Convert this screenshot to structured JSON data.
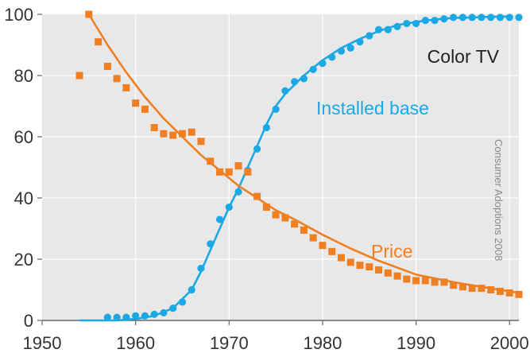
{
  "chart_data": {
    "type": "scatter",
    "title": "Color TV",
    "source_note": "Consumer Adoptions 2008",
    "xlabel": "",
    "ylabel": "",
    "xlim": [
      1950,
      2001
    ],
    "ylim": [
      0,
      100
    ],
    "x_ticks": [
      "1950",
      "1960",
      "1970",
      "1980",
      "1990",
      "2000"
    ],
    "y_ticks": [
      "0",
      "20",
      "40",
      "60",
      "80",
      "100"
    ],
    "colors": {
      "installed": "#1ba9e6",
      "price": "#f07f22",
      "plot_bg": "#e8e8e8",
      "axis": "#666666"
    },
    "series": [
      {
        "name": "Installed base",
        "color": "#1ba9e6",
        "marker": "circle",
        "x": [
          1957,
          1958,
          1959,
          1960,
          1961,
          1962,
          1963,
          1964,
          1965,
          1966,
          1967,
          1968,
          1969,
          1970,
          1971,
          1972,
          1973,
          1974,
          1975,
          1976,
          1977,
          1978,
          1979,
          1980,
          1981,
          1982,
          1983,
          1984,
          1985,
          1986,
          1987,
          1988,
          1989,
          1990,
          1991,
          1992,
          1993,
          1994,
          1995,
          1996,
          1997,
          1998,
          1999,
          2000,
          2001
        ],
        "y": [
          1,
          1,
          1,
          1.5,
          1.5,
          2,
          2.5,
          4,
          6,
          10,
          17,
          25,
          33,
          37,
          42,
          49,
          56,
          63,
          69,
          75,
          78,
          79,
          82,
          84,
          86,
          88,
          89,
          91,
          93,
          95,
          95,
          96,
          97,
          97,
          98,
          98,
          98.5,
          99,
          99,
          99,
          99,
          99,
          99,
          99,
          99
        ],
        "fit_x": [
          1954,
          1956,
          1958,
          1960,
          1962,
          1964,
          1966,
          1967,
          1968,
          1969,
          1970,
          1971,
          1972,
          1973,
          1974,
          1975,
          1976,
          1978,
          1980,
          1982,
          1984,
          1986,
          1988,
          1990,
          1992,
          1994,
          1996,
          1998,
          2000
        ],
        "fit_y": [
          0,
          0,
          0,
          0.5,
          1.5,
          4,
          10,
          16,
          23,
          30,
          37,
          43,
          50,
          57,
          64,
          70,
          74,
          80,
          85,
          89,
          92,
          94.5,
          96.5,
          97.5,
          98.3,
          98.8,
          99,
          99.2,
          99.3
        ]
      },
      {
        "name": "Price",
        "color": "#f07f22",
        "marker": "square",
        "x": [
          1954,
          1955,
          1956,
          1957,
          1958,
          1959,
          1960,
          1961,
          1962,
          1963,
          1964,
          1965,
          1966,
          1967,
          1968,
          1969,
          1970,
          1971,
          1972,
          1973,
          1974,
          1975,
          1976,
          1977,
          1978,
          1979,
          1980,
          1981,
          1982,
          1983,
          1984,
          1985,
          1986,
          1987,
          1988,
          1989,
          1990,
          1991,
          1992,
          1993,
          1994,
          1995,
          1996,
          1997,
          1998,
          1999,
          2000,
          2001
        ],
        "y": [
          80,
          100,
          91,
          83,
          79,
          76,
          71,
          69,
          63,
          61,
          60.5,
          61,
          61.5,
          58.5,
          52,
          48.5,
          48.5,
          50.5,
          48.5,
          40.5,
          37,
          34.5,
          33.5,
          31.5,
          29.5,
          27,
          24.5,
          22.5,
          20.5,
          19,
          18,
          17.5,
          16.5,
          15.5,
          14.5,
          13.5,
          13,
          13,
          12.5,
          12.5,
          11.5,
          11,
          10.5,
          10.5,
          10,
          9.5,
          9,
          8.5
        ],
        "fit_x": [
          1955,
          1957,
          1959,
          1961,
          1963,
          1965,
          1967,
          1969,
          1971,
          1973,
          1975,
          1977,
          1980,
          1983,
          1986,
          1990,
          1994,
          1998,
          2001
        ],
        "fit_y": [
          100,
          90,
          81,
          73,
          66,
          60,
          54,
          49,
          44,
          40,
          36,
          33,
          28,
          23.5,
          19.5,
          15,
          12.5,
          10.5,
          9
        ]
      }
    ],
    "annotations": [
      {
        "text": "Color TV"
      },
      {
        "text": "Installed base"
      },
      {
        "text": "Price"
      }
    ]
  }
}
